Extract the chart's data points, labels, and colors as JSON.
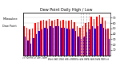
{
  "title": "Dew Point Daily High / Low",
  "left_label_line1": "Milwaukee",
  "left_label_line2": "Dew Point",
  "background_color": "#ffffff",
  "plot_background": "#ffffff",
  "high_color": "#ff0000",
  "low_color": "#0000ff",
  "ylim": [
    0,
    80
  ],
  "yticks": [
    10,
    20,
    30,
    40,
    50,
    60,
    70
  ],
  "dashed_cols": [
    20,
    21,
    22,
    23
  ],
  "days": [
    1,
    2,
    3,
    4,
    5,
    6,
    7,
    8,
    9,
    10,
    11,
    12,
    13,
    14,
    15,
    16,
    17,
    18,
    19,
    20,
    21,
    22,
    23,
    24,
    25,
    26,
    27,
    28,
    29,
    30,
    31
  ],
  "highs": [
    55,
    52,
    49,
    50,
    60,
    62,
    65,
    66,
    65,
    68,
    65,
    66,
    68,
    65,
    66,
    65,
    65,
    66,
    62,
    55,
    52,
    55,
    60,
    62,
    72,
    68,
    72,
    75,
    70,
    65,
    50
  ],
  "lows": [
    35,
    28,
    22,
    32,
    40,
    45,
    48,
    52,
    50,
    55,
    52,
    55,
    55,
    52,
    52,
    50,
    48,
    50,
    45,
    35,
    30,
    35,
    42,
    48,
    55,
    50,
    55,
    58,
    52,
    48,
    30
  ]
}
